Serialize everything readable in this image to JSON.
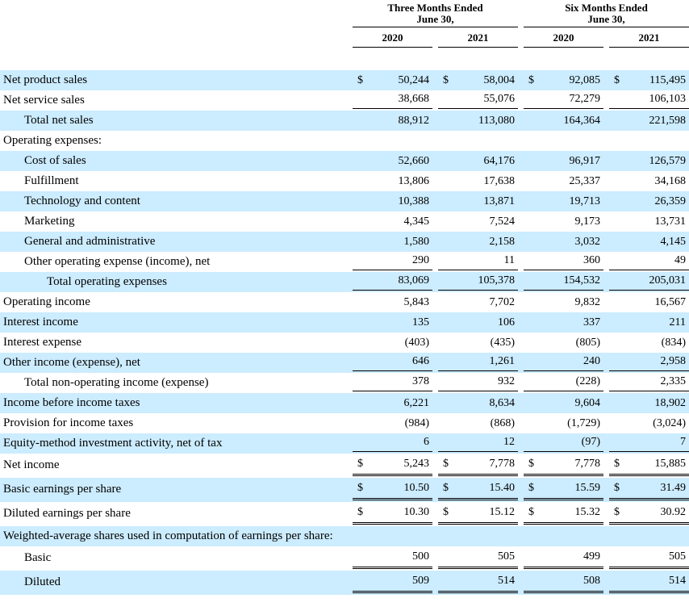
{
  "colors": {
    "row_highlight": "#CCECFF",
    "text": "#000000",
    "rule": "#000000"
  },
  "header": {
    "group1_line1": "Three Months Ended",
    "group1_line2": "June 30,",
    "group2_line1": "Six Months Ended",
    "group2_line2": "June 30,",
    "years": [
      "2020",
      "2021",
      "2020",
      "2021"
    ]
  },
  "rows": [
    {
      "label": "Net product sales",
      "indent": 0,
      "dollar": "$",
      "values": [
        "50,244",
        "58,004",
        "92,085",
        "115,495"
      ]
    },
    {
      "label": "Net service sales",
      "indent": 0,
      "underline": "single",
      "values": [
        "38,668",
        "55,076",
        "72,279",
        "106,103"
      ]
    },
    {
      "label": "Total net sales",
      "indent": 1,
      "values": [
        "88,912",
        "113,080",
        "164,364",
        "221,598"
      ]
    },
    {
      "label": "Operating expenses:",
      "indent": 0
    },
    {
      "label": "Cost of sales",
      "indent": 1,
      "values": [
        "52,660",
        "64,176",
        "96,917",
        "126,579"
      ]
    },
    {
      "label": "Fulfillment",
      "indent": 1,
      "values": [
        "13,806",
        "17,638",
        "25,337",
        "34,168"
      ]
    },
    {
      "label": "Technology and content",
      "indent": 1,
      "values": [
        "10,388",
        "13,871",
        "19,713",
        "26,359"
      ]
    },
    {
      "label": "Marketing",
      "indent": 1,
      "values": [
        "4,345",
        "7,524",
        "9,173",
        "13,731"
      ]
    },
    {
      "label": "General and administrative",
      "indent": 1,
      "values": [
        "1,580",
        "2,158",
        "3,032",
        "4,145"
      ]
    },
    {
      "label": "Other operating expense (income), net",
      "indent": 1,
      "underline": "single",
      "values": [
        "290",
        "11",
        "360",
        "49"
      ]
    },
    {
      "label": "Total operating expenses",
      "indent": 2,
      "underline": "single",
      "values": [
        "83,069",
        "105,378",
        "154,532",
        "205,031"
      ]
    },
    {
      "label": "Operating income",
      "indent": 0,
      "values": [
        "5,843",
        "7,702",
        "9,832",
        "16,567"
      ]
    },
    {
      "label": "Interest income",
      "indent": 0,
      "values": [
        "135",
        "106",
        "337",
        "211"
      ]
    },
    {
      "label": "Interest expense",
      "indent": 0,
      "values": [
        "(403)",
        "(435)",
        "(805)",
        "(834)"
      ]
    },
    {
      "label": "Other income (expense), net",
      "indent": 0,
      "underline": "single",
      "values": [
        "646",
        "1,261",
        "240",
        "2,958"
      ]
    },
    {
      "label": "Total non-operating income (expense)",
      "indent": 1,
      "underline": "single",
      "values": [
        "378",
        "932",
        "(228)",
        "2,335"
      ]
    },
    {
      "label": "Income before income taxes",
      "indent": 0,
      "values": [
        "6,221",
        "8,634",
        "9,604",
        "18,902"
      ]
    },
    {
      "label": "Provision for income taxes",
      "indent": 0,
      "values": [
        "(984)",
        "(868)",
        "(1,729)",
        "(3,024)"
      ]
    },
    {
      "label": "Equity-method investment activity, net of tax",
      "indent": 0,
      "underline": "single",
      "values": [
        "6",
        "12",
        "(97)",
        "7"
      ]
    },
    {
      "label": "Net income",
      "indent": 0,
      "dollar": "$",
      "underline": "double",
      "values": [
        "5,243",
        "7,778",
        "7,778",
        "15,885"
      ]
    },
    {
      "label": "Basic earnings per share",
      "indent": 0,
      "dollar": "$",
      "underline": "double",
      "values": [
        "10.50",
        "15.40",
        "15.59",
        "31.49"
      ]
    },
    {
      "label": "Diluted earnings per share",
      "indent": 0,
      "dollar": "$",
      "underline": "double",
      "values": [
        "10.30",
        "15.12",
        "15.32",
        "30.92"
      ]
    },
    {
      "label": "Weighted-average shares used in computation of earnings per share:",
      "indent": 0
    },
    {
      "label": "Basic",
      "indent": 1,
      "underline": "double",
      "values": [
        "500",
        "505",
        "499",
        "505"
      ]
    },
    {
      "label": "Diluted",
      "indent": 1,
      "underline": "double",
      "values": [
        "509",
        "514",
        "508",
        "514"
      ]
    }
  ]
}
